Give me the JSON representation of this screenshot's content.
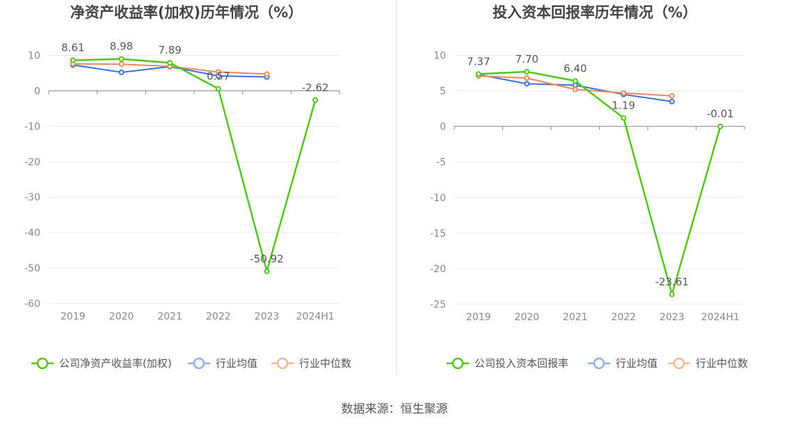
{
  "footer": {
    "source": "数据来源：恒生聚源"
  },
  "colors": {
    "company": "#52c41a",
    "average": "#3a6fd8",
    "median": "#f0875a",
    "legend_average": "#8fb0ee",
    "legend_median": "#f7b59a",
    "axis_text": "#888888",
    "title": "#444444",
    "grid": "#e6e9ef"
  },
  "chart_data": [
    {
      "type": "line",
      "title": "净资产收益率(加权)历年情况（%）",
      "categories": [
        "2019",
        "2020",
        "2021",
        "2022",
        "2023",
        "2024H1"
      ],
      "ylim": [
        -60,
        10
      ],
      "yticks": [
        10,
        0,
        -10,
        -20,
        -30,
        -40,
        -50,
        -60
      ],
      "grid": true,
      "legend_position": "bottom",
      "series": [
        {
          "name": "公司净资产收益率(加权)",
          "color": "company",
          "values": [
            8.61,
            8.98,
            7.89,
            0.57,
            -50.92,
            -2.62
          ],
          "labels": [
            "8.61",
            "8.98",
            "7.89",
            "0.57",
            "-50.92",
            "-2.62"
          ]
        },
        {
          "name": "行业均值",
          "color": "average",
          "values": [
            7.3,
            5.2,
            6.8,
            4.2,
            3.9,
            null
          ]
        },
        {
          "name": "行业中位数",
          "color": "median",
          "values": [
            7.6,
            7.5,
            6.9,
            5.3,
            4.7,
            null
          ]
        }
      ]
    },
    {
      "type": "line",
      "title": "投入资本回报率历年情况（%）",
      "categories": [
        "2019",
        "2020",
        "2021",
        "2022",
        "2023",
        "2024H1"
      ],
      "ylim": [
        -25,
        10
      ],
      "yticks": [
        10,
        5,
        0,
        -5,
        -10,
        -15,
        -20,
        -25
      ],
      "grid": true,
      "legend_position": "bottom",
      "series": [
        {
          "name": "公司投入资本回报率",
          "color": "company",
          "values": [
            7.37,
            7.7,
            6.4,
            1.19,
            -23.61,
            -0.01
          ],
          "labels": [
            "7.37",
            "7.70",
            "6.40",
            "1.19",
            "-23.61",
            "-0.01"
          ]
        },
        {
          "name": "行业均值",
          "color": "average",
          "values": [
            7.3,
            6.0,
            5.8,
            4.5,
            3.5,
            null
          ]
        },
        {
          "name": "行业中位数",
          "color": "median",
          "values": [
            7.1,
            6.8,
            5.2,
            4.7,
            4.3,
            null
          ]
        }
      ]
    }
  ]
}
